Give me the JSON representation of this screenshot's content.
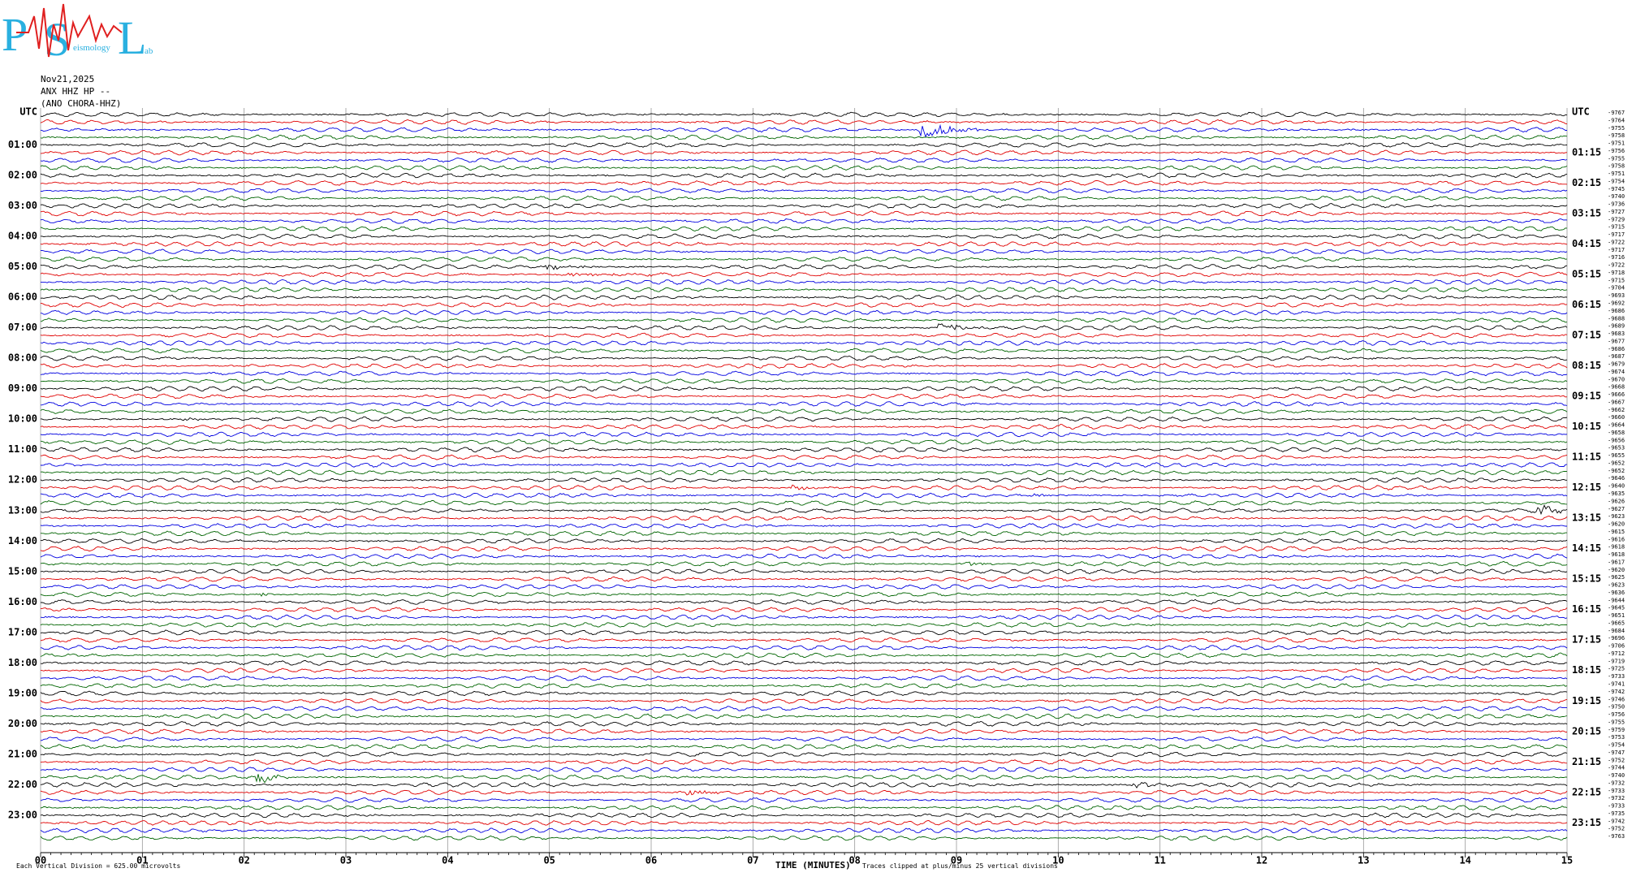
{
  "logo": {
    "letters": [
      "P",
      "S",
      "L"
    ],
    "small": [
      "eismology",
      "ab"
    ]
  },
  "header": {
    "date": "Nov21,2025",
    "channel": "ANX HHZ HP --",
    "station": "(ANO CHORA-HHZ)"
  },
  "left_labels": [
    "UTC",
    "01:00",
    "02:00",
    "03:00",
    "04:00",
    "05:00",
    "06:00",
    "07:00",
    "08:00",
    "09:00",
    "10:00",
    "11:00",
    "12:00",
    "13:00",
    "14:00",
    "15:00",
    "16:00",
    "17:00",
    "18:00",
    "19:00",
    "20:00",
    "21:00",
    "22:00",
    "23:00"
  ],
  "right_labels": [
    "UTC",
    "01:15",
    "02:15",
    "03:15",
    "04:15",
    "05:15",
    "06:15",
    "07:15",
    "08:15",
    "09:15",
    "10:15",
    "11:15",
    "12:15",
    "13:15",
    "14:15",
    "15:15",
    "16:15",
    "17:15",
    "18:15",
    "19:15",
    "20:15",
    "21:15",
    "22:15",
    "23:15"
  ],
  "trace_offsets": [
    "-9767",
    "-9764",
    "-9755",
    "-9758",
    "-9751",
    "-9756",
    "-9755",
    "-9758",
    "-9751",
    "-9754",
    "-9745",
    "-9740",
    "-9736",
    "-9727",
    "-9729",
    "-9715",
    "-9717",
    "-9722",
    "-9717",
    "-9716",
    "-9722",
    "-9718",
    "-9715",
    "-9704",
    "-9693",
    "-9692",
    "-9686",
    "-9688",
    "-9689",
    "-9683",
    "-9677",
    "-9686",
    "-9687",
    "-9679",
    "-9674",
    "-9670",
    "-9668",
    "-9666",
    "-9667",
    "-9662",
    "-9660",
    "-9664",
    "-9658",
    "-9656",
    "-9653",
    "-9655",
    "-9652",
    "-9652",
    "-9646",
    "-9640",
    "-9635",
    "-9626",
    "-9627",
    "-9623",
    "-9620",
    "-9615",
    "-9616",
    "-9618",
    "-9618",
    "-9617",
    "-9620",
    "-9625",
    "-9623",
    "-9636",
    "-9644",
    "-9645",
    "-9651",
    "-9665",
    "-9684",
    "-9696",
    "-9706",
    "-9712",
    "-9719",
    "-9725",
    "-9733",
    "-9741",
    "-9742",
    "-9746",
    "-9750",
    "-9756",
    "-9755",
    "-9759",
    "-9753",
    "-9754",
    "-9747",
    "-9752",
    "-9744",
    "-9740",
    "-9732",
    "-9733",
    "-9732",
    "-9733",
    "-9735",
    "-9742",
    "-9752",
    "-9763"
  ],
  "x_ticks": [
    "00",
    "01",
    "02",
    "03",
    "04",
    "05",
    "06",
    "07",
    "08",
    "09",
    "10",
    "11",
    "12",
    "13",
    "14",
    "15"
  ],
  "footer": {
    "division": "Each Vertical Division =  625.00 microvolts",
    "x_label": "TIME (MINUTES)",
    "clip": "Traces clipped at plus/minus 25 vertical divisions"
  }
}
